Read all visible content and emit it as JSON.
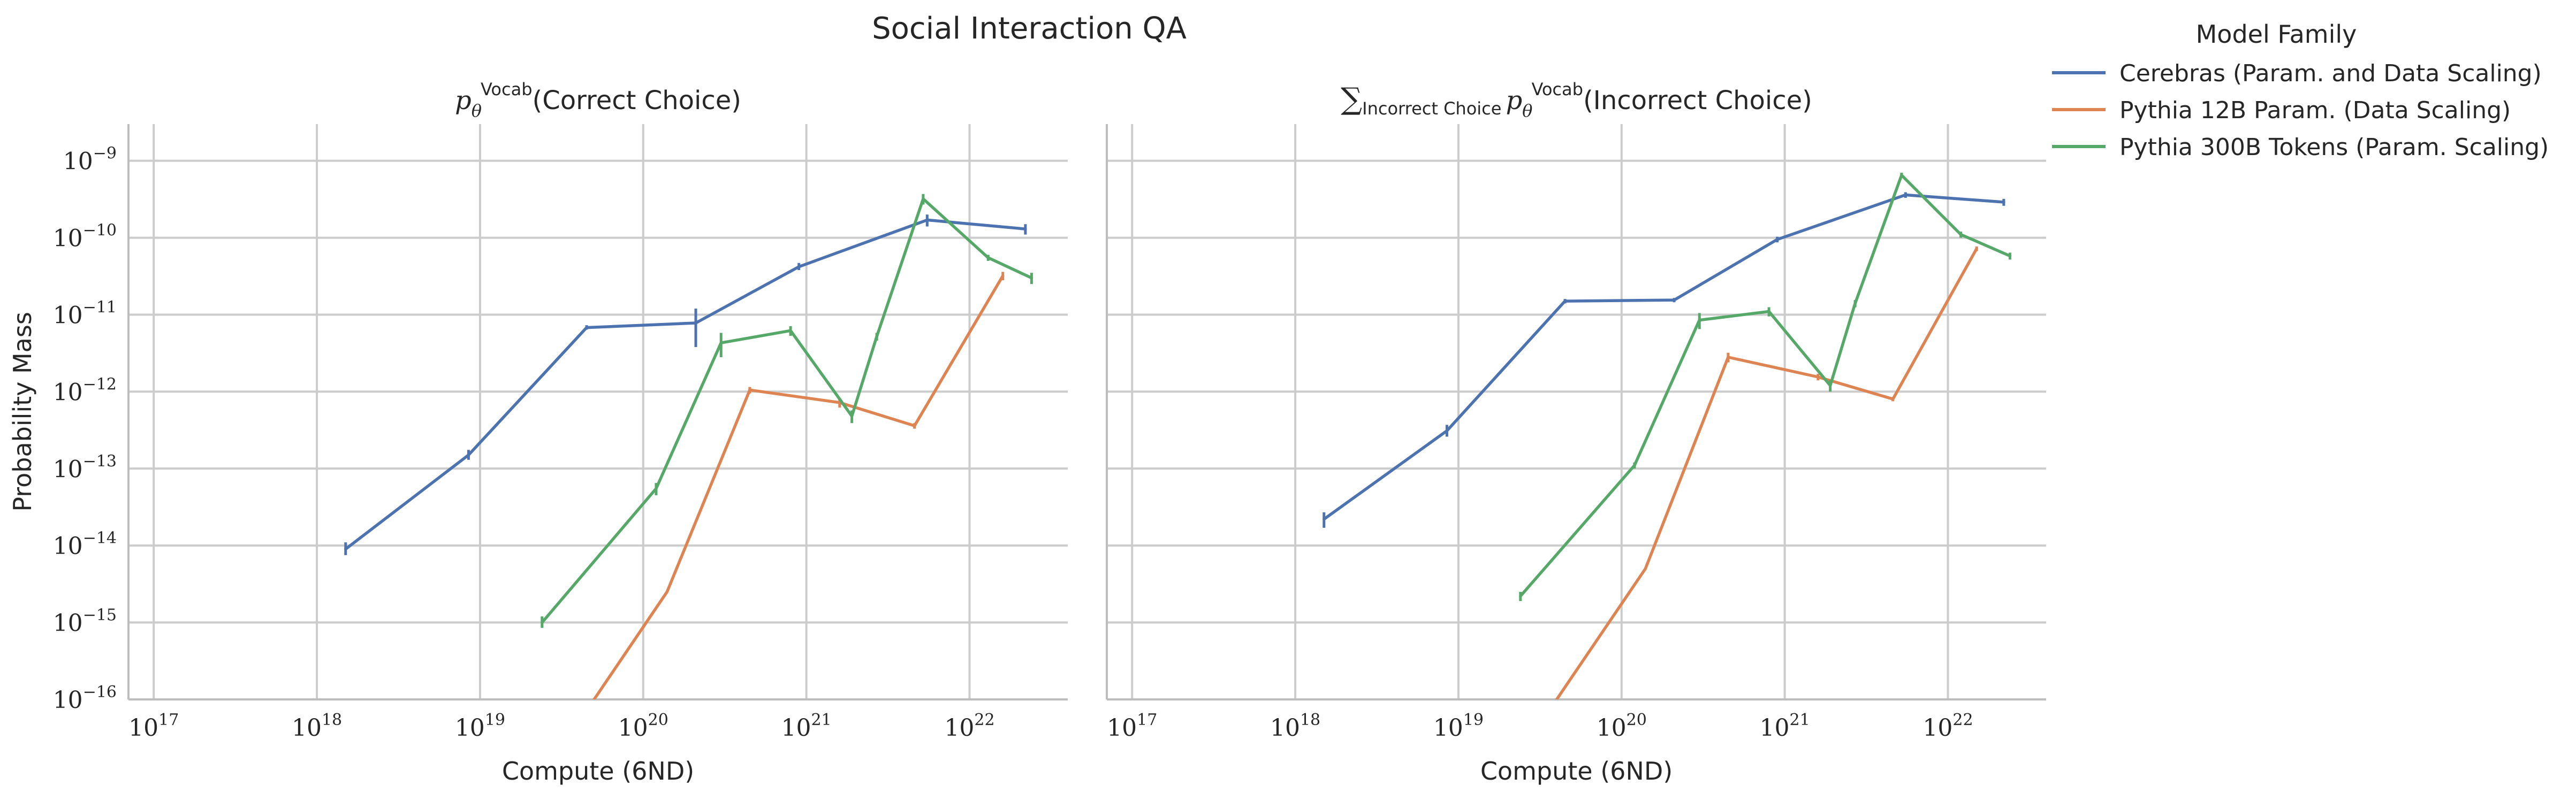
{
  "figure": {
    "suptitle": "Social Interaction QA",
    "legend": {
      "title": "Model Family",
      "placement": "right, outside plots"
    }
  },
  "chart_data": [
    {
      "type": "line",
      "title_parts": {
        "base": "p",
        "sub": "θ",
        "sup": "Vocab",
        "rest": "(Correct Choice)"
      },
      "xlabel": "Compute (6ND)",
      "ylabel": "Probability Mass",
      "xscale": "log",
      "yscale": "log",
      "xlim": [
        7e+16,
        4e+22
      ],
      "ylim": [
        1e-16,
        3e-09
      ],
      "grid": true,
      "x_ticks": [
        {
          "exp": 17,
          "label": "10",
          "sup": "17"
        },
        {
          "exp": 18,
          "label": "10",
          "sup": "18"
        },
        {
          "exp": 19,
          "label": "10",
          "sup": "19"
        },
        {
          "exp": 20,
          "label": "10",
          "sup": "20"
        },
        {
          "exp": 21,
          "label": "10",
          "sup": "21"
        },
        {
          "exp": 22,
          "label": "10",
          "sup": "22"
        }
      ],
      "y_ticks": [
        {
          "exp": -9,
          "label": "10",
          "sup": "−9"
        },
        {
          "exp": -10,
          "label": "10",
          "sup": "−10"
        },
        {
          "exp": -11,
          "label": "10",
          "sup": "−11"
        },
        {
          "exp": -12,
          "label": "10",
          "sup": "−12"
        },
        {
          "exp": -13,
          "label": "10",
          "sup": "−13"
        },
        {
          "exp": -14,
          "label": "10",
          "sup": "−14"
        },
        {
          "exp": -15,
          "label": "10",
          "sup": "−15"
        },
        {
          "exp": -16,
          "label": "10",
          "sup": "−16"
        }
      ],
      "series": [
        {
          "name": "Cerebras (Param. and Data Scaling)",
          "color": "#4c72b0",
          "points": [
            {
              "x": 1.5e+18,
              "y": 9e-15,
              "err": [
                7.5e-15,
                1.1e-14
              ]
            },
            {
              "x": 8.5e+18,
              "y": 1.5e-13,
              "err": [
                1.3e-13,
                1.75e-13
              ]
            },
            {
              "x": 4.5e+19,
              "y": 6.8e-12,
              "err": [
                6.4e-12,
                7.3e-12
              ]
            },
            {
              "x": 2.1e+20,
              "y": 7.8e-12,
              "err": [
                3.8e-12,
                1.2e-11
              ]
            },
            {
              "x": 9e+20,
              "y": 4.2e-11,
              "err": [
                3.8e-11,
                4.7e-11
              ]
            },
            {
              "x": 5.5e+21,
              "y": 1.7e-10,
              "err": [
                1.4e-10,
                2e-10
              ]
            },
            {
              "x": 2.2e+22,
              "y": 1.3e-10,
              "err": [
                1.1e-10,
                1.5e-10
              ]
            }
          ]
        },
        {
          "name": "Pythia 12B Param. (Data Scaling)",
          "color": "#dd8452",
          "points": [
            {
              "x": 5e+19,
              "y": 1e-16,
              "err": null
            },
            {
              "x": 1.4e+20,
              "y": 2.5e-15,
              "err": null
            },
            {
              "x": 4.5e+20,
              "y": 1.05e-12,
              "err": [
                9.5e-13,
                1.15e-12
              ]
            },
            {
              "x": 1.6e+21,
              "y": 7.2e-13,
              "err": [
                6.2e-13,
                8.2e-13
              ]
            },
            {
              "x": 4.6e+21,
              "y": 3.6e-13,
              "err": [
                3.3e-13,
                3.9e-13
              ]
            },
            {
              "x": 1.6e+22,
              "y": 3.2e-11,
              "err": [
                2.8e-11,
                3.6e-11
              ]
            }
          ]
        },
        {
          "name": "Pythia 300B Tokens (Param. Scaling)",
          "color": "#55a868",
          "points": [
            {
              "x": 2.4e+19,
              "y": 1e-15,
              "err": [
                8.5e-16,
                1.2e-15
              ]
            },
            {
              "x": 1.2e+20,
              "y": 5.5e-14,
              "err": [
                4.5e-14,
                6.5e-14
              ]
            },
            {
              "x": 3e+20,
              "y": 4.3e-12,
              "err": [
                2.8e-12,
                5.8e-12
              ]
            },
            {
              "x": 8e+20,
              "y": 6.2e-12,
              "err": [
                5.3e-12,
                7.1e-12
              ]
            },
            {
              "x": 1.9e+21,
              "y": 4.8e-13,
              "err": [
                3.9e-13,
                5.7e-13
              ]
            },
            {
              "x": 2.7e+21,
              "y": 5.2e-12,
              "err": [
                4.6e-12,
                5.8e-12
              ]
            },
            {
              "x": 5.2e+21,
              "y": 3.2e-10,
              "err": [
                2.7e-10,
                3.7e-10
              ]
            },
            {
              "x": 1.3e+22,
              "y": 5.5e-11,
              "err": [
                5e-11,
                6e-11
              ]
            },
            {
              "x": 2.4e+22,
              "y": 3e-11,
              "err": [
                2.5e-11,
                3.5e-11
              ]
            }
          ]
        }
      ]
    },
    {
      "type": "line",
      "title_parts": {
        "sum": "∑",
        "sum_sub": "Incorrect Choice",
        "base": "p",
        "sub": "θ",
        "sup": "Vocab",
        "rest": "(Incorrect Choice)"
      },
      "xlabel": "Compute (6ND)",
      "ylabel": "",
      "xscale": "log",
      "yscale": "log",
      "xlim": [
        7e+16,
        4e+22
      ],
      "ylim": [
        1e-16,
        3e-09
      ],
      "grid": true,
      "sharey": true,
      "x_ticks": [
        {
          "exp": 17,
          "label": "10",
          "sup": "17"
        },
        {
          "exp": 18,
          "label": "10",
          "sup": "18"
        },
        {
          "exp": 19,
          "label": "10",
          "sup": "19"
        },
        {
          "exp": 20,
          "label": "10",
          "sup": "20"
        },
        {
          "exp": 21,
          "label": "10",
          "sup": "21"
        },
        {
          "exp": 22,
          "label": "10",
          "sup": "22"
        }
      ],
      "series": [
        {
          "name": "Cerebras (Param. and Data Scaling)",
          "color": "#4c72b0",
          "points": [
            {
              "x": 1.5e+18,
              "y": 2.2e-14,
              "err": [
                1.7e-14,
                2.7e-14
              ]
            },
            {
              "x": 8.5e+18,
              "y": 3.1e-13,
              "err": [
                2.6e-13,
                3.7e-13
              ]
            },
            {
              "x": 4.5e+19,
              "y": 1.5e-11,
              "err": [
                1.4e-11,
                1.6e-11
              ]
            },
            {
              "x": 2.1e+20,
              "y": 1.55e-11,
              "err": [
                1.45e-11,
                1.65e-11
              ]
            },
            {
              "x": 9e+20,
              "y": 9.5e-11,
              "err": [
                8.7e-11,
                1.03e-10
              ]
            },
            {
              "x": 5.5e+21,
              "y": 3.6e-10,
              "err": [
                3.3e-10,
                3.9e-10
              ]
            },
            {
              "x": 2.2e+22,
              "y": 2.9e-10,
              "err": [
                2.6e-10,
                3.2e-10
              ]
            }
          ]
        },
        {
          "name": "Pythia 12B Param. (Data Scaling)",
          "color": "#dd8452",
          "points": [
            {
              "x": 4e+19,
              "y": 1e-16,
              "err": null
            },
            {
              "x": 1.4e+20,
              "y": 5e-15,
              "err": null
            },
            {
              "x": 4.5e+20,
              "y": 2.8e-12,
              "err": [
                2.4e-12,
                3.2e-12
              ]
            },
            {
              "x": 1.6e+21,
              "y": 1.55e-12,
              "err": [
                1.4e-12,
                1.7e-12
              ]
            },
            {
              "x": 4.6e+21,
              "y": 8e-13,
              "err": [
                7.5e-13,
                8.5e-13
              ]
            },
            {
              "x": 1.5e+22,
              "y": 7.2e-11,
              "err": [
                6.7e-11,
                7.7e-11
              ]
            }
          ]
        },
        {
          "name": "Pythia 300B Tokens (Param. Scaling)",
          "color": "#55a868",
          "points": [
            {
              "x": 2.4e+19,
              "y": 2.2e-15,
              "err": [
                1.9e-15,
                2.5e-15
              ]
            },
            {
              "x": 1.2e+20,
              "y": 1.1e-13,
              "err": [
                1e-13,
                1.2e-13
              ]
            },
            {
              "x": 3e+20,
              "y": 8.5e-12,
              "err": [
                6.5e-12,
                1.05e-11
              ]
            },
            {
              "x": 8e+20,
              "y": 1.1e-11,
              "err": [
                9.5e-12,
                1.25e-11
              ]
            },
            {
              "x": 1.9e+21,
              "y": 1.2e-12,
              "err": [
                1e-12,
                1.4e-12
              ]
            },
            {
              "x": 2.7e+21,
              "y": 1.4e-11,
              "err": [
                1.25e-11,
                1.55e-11
              ]
            },
            {
              "x": 5.2e+21,
              "y": 6.5e-10,
              "err": [
                6e-10,
                7e-10
              ]
            },
            {
              "x": 1.2e+22,
              "y": 1.1e-10,
              "err": [
                1e-10,
                1.2e-10
              ]
            },
            {
              "x": 2.4e+22,
              "y": 5.8e-11,
              "err": [
                5.2e-11,
                6.4e-11
              ]
            }
          ]
        }
      ]
    }
  ]
}
